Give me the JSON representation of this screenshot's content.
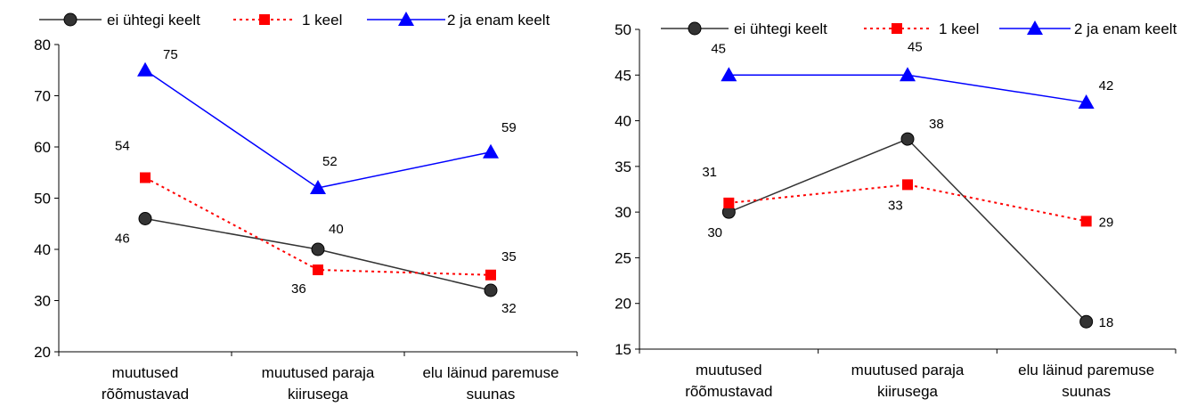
{
  "chart_data": [
    {
      "type": "line",
      "categories": [
        [
          "muutused",
          "rõõmustavad"
        ],
        [
          "muutused paraja",
          "kiirusega"
        ],
        [
          "elu läinud paremuse",
          "suunas"
        ]
      ],
      "ylim": [
        20,
        80
      ],
      "yticks": [
        20,
        30,
        40,
        50,
        60,
        70,
        80
      ],
      "legend_position": "top",
      "grid": false,
      "series": [
        {
          "name": "ei ühtegi keelt",
          "values": [
            46,
            40,
            32
          ],
          "color": "#333333",
          "marker": "circle",
          "dash": "solid"
        },
        {
          "name": "1 keel",
          "values": [
            54,
            36,
            35
          ],
          "color": "#ff0000",
          "marker": "square",
          "dash": "dotted"
        },
        {
          "name": "2 ja enam keelt",
          "values": [
            75,
            52,
            59
          ],
          "color": "#0000ff",
          "marker": "triangle",
          "dash": "solid"
        }
      ]
    },
    {
      "type": "line",
      "categories": [
        [
          "muutused",
          "rõõmustavad"
        ],
        [
          "muutused paraja",
          "kiirusega"
        ],
        [
          "elu läinud paremuse",
          "suunas"
        ]
      ],
      "ylim": [
        15,
        50
      ],
      "yticks": [
        15,
        20,
        25,
        30,
        35,
        40,
        45,
        50
      ],
      "legend_position": "top",
      "grid": false,
      "series": [
        {
          "name": "ei ühtegi keelt",
          "values": [
            30,
            38,
            18
          ],
          "color": "#333333",
          "marker": "circle",
          "dash": "solid"
        },
        {
          "name": "1 keel",
          "values": [
            31,
            33,
            29
          ],
          "color": "#ff0000",
          "marker": "square",
          "dash": "dotted"
        },
        {
          "name": "2 ja enam keelt",
          "values": [
            45,
            45,
            42
          ],
          "color": "#0000ff",
          "marker": "triangle",
          "dash": "solid"
        }
      ]
    }
  ]
}
